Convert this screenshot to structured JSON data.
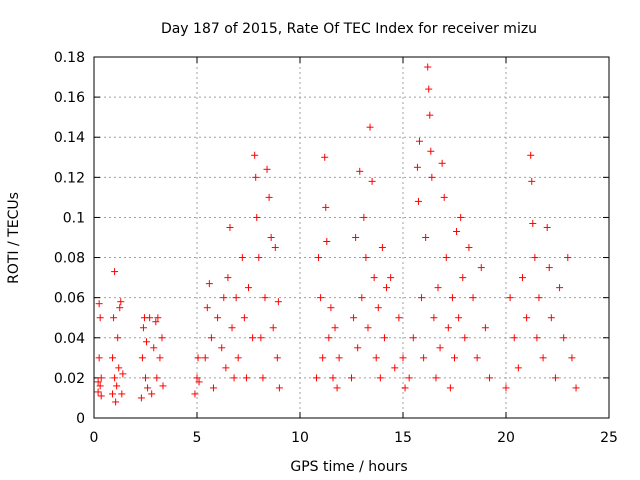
{
  "chart_data": {
    "type": "scatter",
    "title": "Day 187 of 2015, Rate Of TEC Index for receiver mizu",
    "xlabel": "GPS time / hours",
    "ylabel": "ROTI / TECUs",
    "xlim": [
      0,
      25
    ],
    "ylim": [
      0,
      0.18
    ],
    "x_ticks": [
      "0",
      "5",
      "10",
      "15",
      "20",
      "25"
    ],
    "y_ticks": [
      "0",
      "0.02",
      "0.04",
      "0.06",
      "0.08",
      "0.1",
      "0.12",
      "0.14",
      "0.16",
      "0.18"
    ],
    "grid": true,
    "marker": "+",
    "color": "#ff0000",
    "series": [
      {
        "points": [
          [
            0.2,
            0.013
          ],
          [
            0.2,
            0.018
          ],
          [
            0.25,
            0.03
          ],
          [
            0.25,
            0.057
          ],
          [
            0.3,
            0.016
          ],
          [
            0.3,
            0.05
          ],
          [
            0.35,
            0.02
          ],
          [
            0.35,
            0.011
          ],
          [
            0.9,
            0.012
          ],
          [
            0.9,
            0.03
          ],
          [
            0.95,
            0.05
          ],
          [
            1.0,
            0.073
          ],
          [
            1.0,
            0.02
          ],
          [
            1.05,
            0.008
          ],
          [
            1.1,
            0.016
          ],
          [
            1.15,
            0.04
          ],
          [
            1.2,
            0.025
          ],
          [
            1.25,
            0.055
          ],
          [
            1.3,
            0.058
          ],
          [
            1.35,
            0.012
          ],
          [
            1.4,
            0.022
          ],
          [
            2.3,
            0.01
          ],
          [
            2.35,
            0.03
          ],
          [
            2.4,
            0.045
          ],
          [
            2.45,
            0.05
          ],
          [
            2.5,
            0.02
          ],
          [
            2.55,
            0.038
          ],
          [
            2.6,
            0.015
          ],
          [
            2.7,
            0.05
          ],
          [
            2.8,
            0.012
          ],
          [
            2.9,
            0.035
          ],
          [
            3.0,
            0.048
          ],
          [
            3.05,
            0.02
          ],
          [
            3.1,
            0.05
          ],
          [
            3.2,
            0.03
          ],
          [
            3.3,
            0.04
          ],
          [
            3.35,
            0.016
          ],
          [
            4.9,
            0.012
          ],
          [
            5.0,
            0.02
          ],
          [
            5.05,
            0.03
          ],
          [
            5.1,
            0.018
          ],
          [
            5.4,
            0.03
          ],
          [
            5.5,
            0.055
          ],
          [
            5.6,
            0.067
          ],
          [
            5.7,
            0.04
          ],
          [
            5.8,
            0.015
          ],
          [
            6.0,
            0.05
          ],
          [
            6.2,
            0.035
          ],
          [
            6.3,
            0.06
          ],
          [
            6.4,
            0.025
          ],
          [
            6.5,
            0.07
          ],
          [
            6.6,
            0.095
          ],
          [
            6.7,
            0.045
          ],
          [
            6.8,
            0.02
          ],
          [
            6.9,
            0.06
          ],
          [
            7.0,
            0.03
          ],
          [
            7.2,
            0.08
          ],
          [
            7.3,
            0.05
          ],
          [
            7.4,
            0.02
          ],
          [
            7.5,
            0.065
          ],
          [
            7.7,
            0.04
          ],
          [
            7.8,
            0.131
          ],
          [
            7.85,
            0.12
          ],
          [
            7.9,
            0.1
          ],
          [
            8.0,
            0.08
          ],
          [
            8.1,
            0.04
          ],
          [
            8.2,
            0.02
          ],
          [
            8.3,
            0.06
          ],
          [
            8.4,
            0.124
          ],
          [
            8.5,
            0.11
          ],
          [
            8.6,
            0.09
          ],
          [
            8.7,
            0.045
          ],
          [
            8.8,
            0.085
          ],
          [
            8.9,
            0.03
          ],
          [
            8.95,
            0.058
          ],
          [
            9.0,
            0.015
          ],
          [
            10.8,
            0.02
          ],
          [
            10.9,
            0.08
          ],
          [
            11.0,
            0.06
          ],
          [
            11.1,
            0.03
          ],
          [
            11.2,
            0.13
          ],
          [
            11.25,
            0.105
          ],
          [
            11.3,
            0.088
          ],
          [
            11.4,
            0.04
          ],
          [
            11.5,
            0.055
          ],
          [
            11.6,
            0.02
          ],
          [
            11.7,
            0.045
          ],
          [
            11.8,
            0.015
          ],
          [
            11.9,
            0.03
          ],
          [
            12.5,
            0.02
          ],
          [
            12.6,
            0.05
          ],
          [
            12.7,
            0.09
          ],
          [
            12.8,
            0.035
          ],
          [
            12.9,
            0.123
          ],
          [
            13.0,
            0.06
          ],
          [
            13.1,
            0.1
          ],
          [
            13.2,
            0.08
          ],
          [
            13.3,
            0.045
          ],
          [
            13.4,
            0.145
          ],
          [
            13.5,
            0.118
          ],
          [
            13.6,
            0.07
          ],
          [
            13.7,
            0.03
          ],
          [
            13.8,
            0.055
          ],
          [
            13.9,
            0.02
          ],
          [
            14.0,
            0.085
          ],
          [
            14.1,
            0.04
          ],
          [
            14.2,
            0.065
          ],
          [
            14.4,
            0.07
          ],
          [
            14.6,
            0.025
          ],
          [
            14.8,
            0.05
          ],
          [
            15.0,
            0.03
          ],
          [
            15.1,
            0.015
          ],
          [
            15.3,
            0.02
          ],
          [
            15.5,
            0.04
          ],
          [
            15.7,
            0.125
          ],
          [
            15.75,
            0.108
          ],
          [
            15.8,
            0.138
          ],
          [
            15.9,
            0.06
          ],
          [
            16.0,
            0.03
          ],
          [
            16.1,
            0.09
          ],
          [
            16.2,
            0.175
          ],
          [
            16.25,
            0.164
          ],
          [
            16.3,
            0.151
          ],
          [
            16.35,
            0.133
          ],
          [
            16.4,
            0.12
          ],
          [
            16.5,
            0.05
          ],
          [
            16.6,
            0.02
          ],
          [
            16.7,
            0.065
          ],
          [
            16.8,
            0.035
          ],
          [
            16.9,
            0.127
          ],
          [
            17.0,
            0.11
          ],
          [
            17.1,
            0.08
          ],
          [
            17.2,
            0.045
          ],
          [
            17.3,
            0.015
          ],
          [
            17.4,
            0.06
          ],
          [
            17.5,
            0.03
          ],
          [
            17.6,
            0.093
          ],
          [
            17.7,
            0.05
          ],
          [
            17.8,
            0.1
          ],
          [
            17.9,
            0.07
          ],
          [
            18.0,
            0.04
          ],
          [
            18.2,
            0.085
          ],
          [
            18.4,
            0.06
          ],
          [
            18.6,
            0.03
          ],
          [
            18.8,
            0.075
          ],
          [
            19.0,
            0.045
          ],
          [
            19.2,
            0.02
          ],
          [
            20.0,
            0.015
          ],
          [
            20.2,
            0.06
          ],
          [
            20.4,
            0.04
          ],
          [
            20.6,
            0.025
          ],
          [
            20.8,
            0.07
          ],
          [
            21.0,
            0.05
          ],
          [
            21.2,
            0.131
          ],
          [
            21.25,
            0.118
          ],
          [
            21.3,
            0.097
          ],
          [
            21.4,
            0.08
          ],
          [
            21.5,
            0.04
          ],
          [
            21.6,
            0.06
          ],
          [
            21.8,
            0.03
          ],
          [
            22.0,
            0.095
          ],
          [
            22.1,
            0.075
          ],
          [
            22.2,
            0.05
          ],
          [
            22.4,
            0.02
          ],
          [
            22.6,
            0.065
          ],
          [
            22.8,
            0.04
          ],
          [
            23.0,
            0.08
          ],
          [
            23.2,
            0.03
          ],
          [
            23.4,
            0.015
          ]
        ]
      }
    ]
  }
}
